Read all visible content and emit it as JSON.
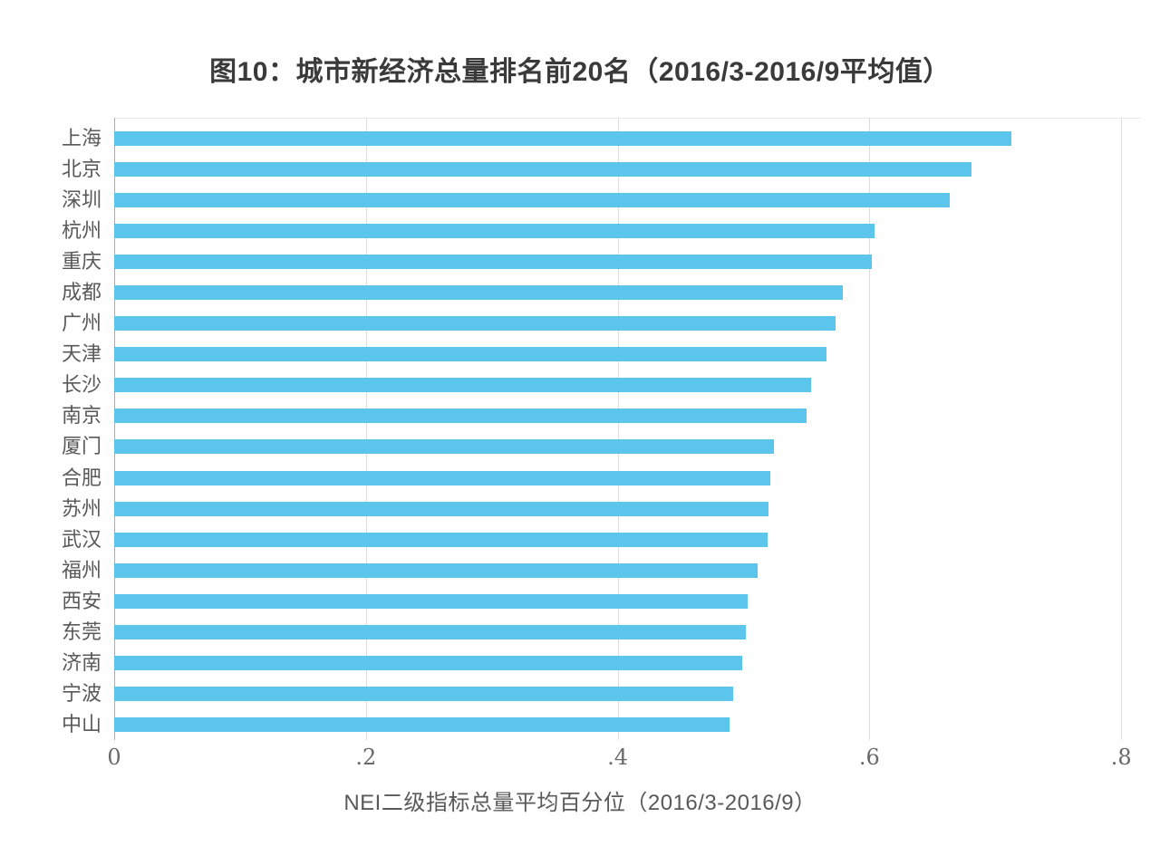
{
  "title": "图10：城市新经济总量排名前20名（2016/3-2016/9平均值）",
  "colors": {
    "bar": "#5CC5EC",
    "gridline": "#DCDCDC",
    "zero_axis": "#ABABAB",
    "plot_top_border": "#E8E8E8",
    "title_text": "#3A3A3A",
    "category_text": "#595959",
    "tick_text": "#696969",
    "xlabel_text": "#595959",
    "background": "#FFFFFF"
  },
  "chart_data": {
    "type": "bar",
    "orientation": "horizontal",
    "title": "图10：城市新经济总量排名前20名（2016/3-2016/9平均值）",
    "xlabel": "NEI二级指标总量平均百分位（2016/3-2016/9）",
    "ylabel": "",
    "categories": [
      "上海",
      "北京",
      "深圳",
      "杭州",
      "重庆",
      "成都",
      "广州",
      "天津",
      "长沙",
      "南京",
      "厦门",
      "合肥",
      "苏州",
      "武汉",
      "福州",
      "西安",
      "东莞",
      "济南",
      "宁波",
      "中山"
    ],
    "values": [
      0.713,
      0.681,
      0.664,
      0.604,
      0.602,
      0.579,
      0.573,
      0.566,
      0.554,
      0.55,
      0.524,
      0.521,
      0.52,
      0.519,
      0.511,
      0.503,
      0.502,
      0.499,
      0.492,
      0.489
    ],
    "xlim": [
      0,
      0.8
    ],
    "xtick_labels": [
      "0",
      ".2",
      ".4",
      ".6",
      ".8"
    ],
    "xtick_values": [
      0,
      0.2,
      0.4,
      0.6,
      0.8
    ],
    "grid": true,
    "legend": false
  }
}
